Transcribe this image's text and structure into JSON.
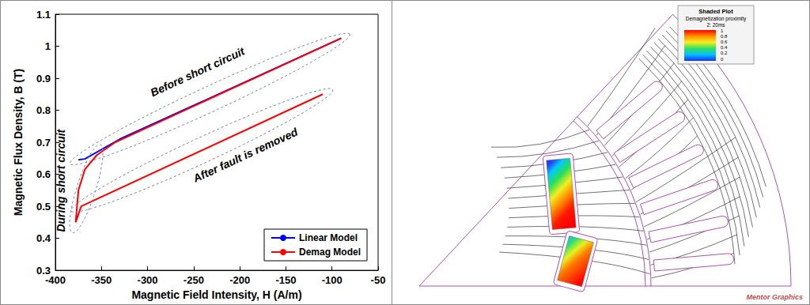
{
  "chart_data": {
    "type": "line",
    "x_label": "Magnetic Field Intensity, H (A/m)",
    "y_label": "Magnetic Flux Density, B (T)",
    "xlim": [
      -400,
      -50
    ],
    "xticks": [
      -400,
      -350,
      -300,
      -250,
      -200,
      -150,
      -100,
      -50
    ],
    "ylim": [
      0.3,
      1.1
    ],
    "yticks": [
      0.3,
      0.4,
      0.5,
      0.6,
      0.7,
      0.8,
      0.9,
      1,
      1.1
    ],
    "grid": false,
    "legend": "lower right",
    "series": [
      {
        "name": "Linear Model",
        "color": "#0000ff",
        "line_style": "solid",
        "x": [
          -90,
          -330,
          -368,
          -375
        ],
        "values": [
          1.025,
          0.71,
          0.648,
          0.645
        ]
      },
      {
        "name": "Demag Model",
        "color": "#ff0000",
        "line_style": "solid",
        "x": [
          -90,
          -335,
          -355,
          -368,
          -375,
          -378,
          -372,
          -110
        ],
        "values": [
          1.025,
          0.7,
          0.66,
          0.615,
          0.55,
          0.45,
          0.5,
          0.85
        ]
      }
    ],
    "annotations": [
      {
        "text": "Before short circuit",
        "x": -246,
        "y": 0.92
      },
      {
        "text": "After fault is removed",
        "x": -194,
        "y": 0.66
      },
      {
        "text": "During short circuit",
        "x": -394,
        "y": 0.58
      }
    ]
  },
  "diagram": {
    "legend_title": "Shaded Plot",
    "legend_subtitle": "Demagnetization proximity",
    "legend_time": "2: 20ms",
    "scale_labels": [
      1,
      0.8,
      0.6,
      0.4,
      0.2,
      0
    ],
    "logo": "Mentor Graphics"
  }
}
